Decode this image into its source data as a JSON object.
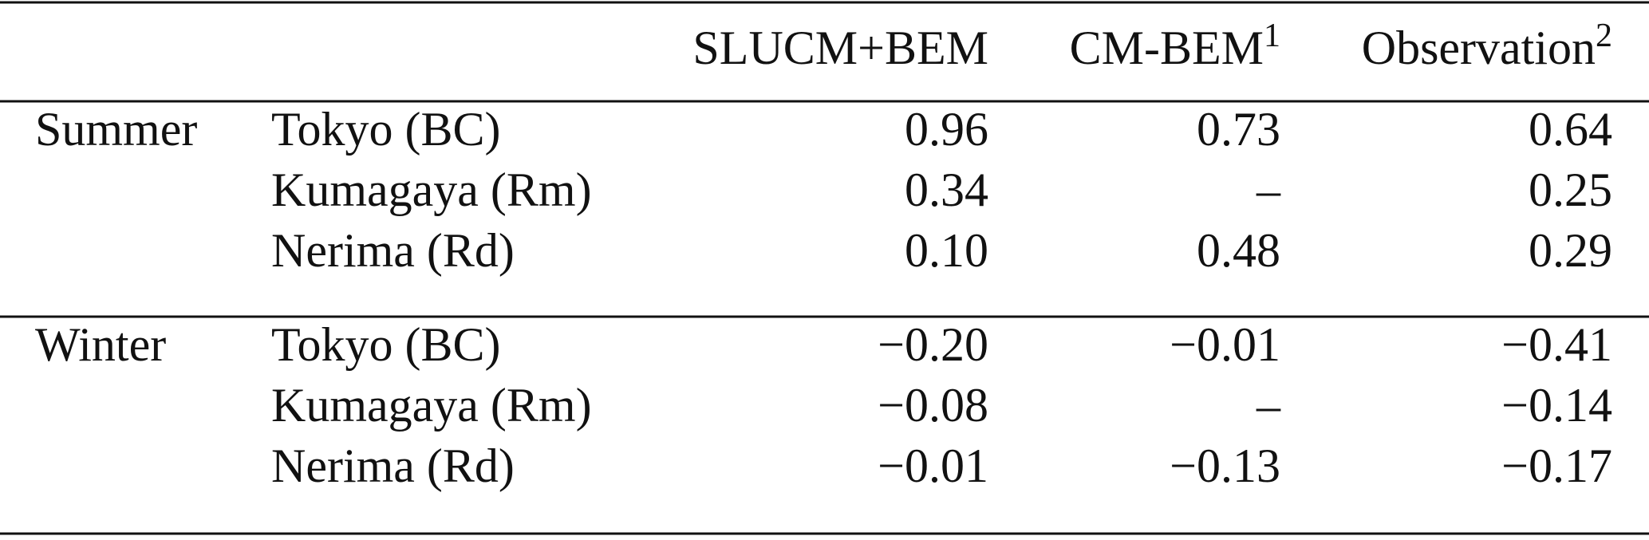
{
  "table": {
    "header": [
      {
        "text": "SLUCM+BEM"
      },
      {
        "text": "CM-BEM",
        "sup": "1"
      },
      {
        "text": "Observation",
        "sup": "2"
      }
    ],
    "groups": [
      {
        "season": "Summer",
        "rows": [
          {
            "site": "Tokyo (BC)",
            "cells": [
              "0.96",
              "0.73",
              "0.64"
            ]
          },
          {
            "site": "Kumagaya (Rm)",
            "cells": [
              "0.34",
              "–",
              "0.25"
            ]
          },
          {
            "site": "Nerima (Rd)",
            "cells": [
              "0.10",
              "0.48",
              "0.29"
            ]
          }
        ]
      },
      {
        "season": "Winter",
        "rows": [
          {
            "site": "Tokyo (BC)",
            "cells": [
              "−0.20",
              "−0.01",
              "−0.41"
            ]
          },
          {
            "site": "Kumagaya (Rm)",
            "cells": [
              "−0.08",
              "–",
              "−0.14"
            ]
          },
          {
            "site": "Nerima (Rd)",
            "cells": [
              "−0.01",
              "−0.13",
              "−0.17"
            ]
          }
        ]
      }
    ]
  }
}
